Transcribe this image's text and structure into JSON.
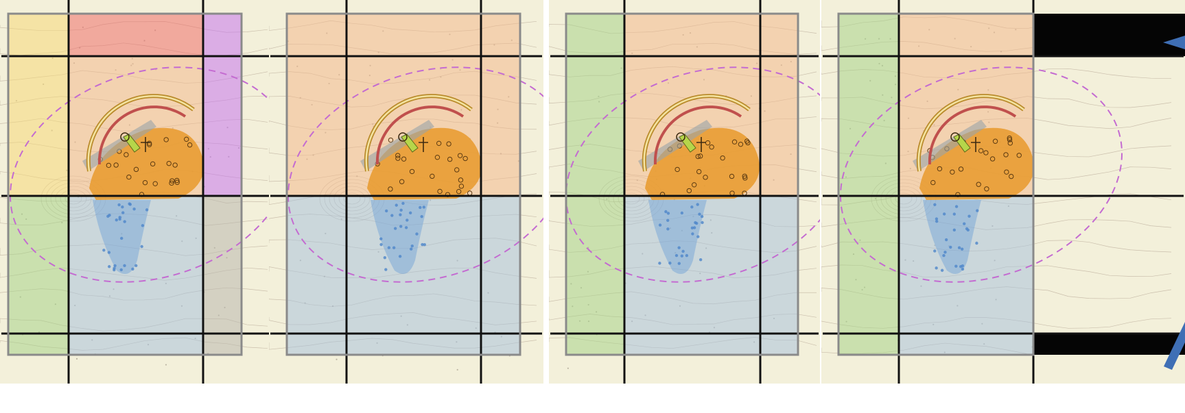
{
  "figure": {
    "panel_count": 4,
    "colors": {
      "map_bg": "#f3f0da",
      "contour": "#a99886",
      "ellipse": "#c46bd1",
      "grid_line": "#111111",
      "frame": "#8a8a8a",
      "arc_outer": "#b98b2c",
      "arc_inner": "#c0504d",
      "yellow": "#f6d87a",
      "red": "#ef6f6c",
      "purple": "#c676ee",
      "orange": "#f3b98e",
      "green": "#a8d48a",
      "blue": "#a9c3dc",
      "gray": "#b9b8ae",
      "black": "#050505",
      "arrow": "#3f6fb5",
      "basin_orange": "#e79a2b",
      "basin_blue": "#6c9fd6"
    },
    "panels": [
      {
        "id": "panel-1",
        "zones": [
          {
            "name": "zone-top-left",
            "color": "yellow"
          },
          {
            "name": "zone-top-center",
            "color": "red"
          },
          {
            "name": "zone-top-right",
            "color": "purple"
          },
          {
            "name": "zone-mid-left",
            "color": "yellow"
          },
          {
            "name": "zone-mid-center",
            "color": "orange"
          },
          {
            "name": "zone-mid-right",
            "color": "purple"
          },
          {
            "name": "zone-bottom-left",
            "color": "green"
          },
          {
            "name": "zone-bottom-center",
            "color": "blue"
          },
          {
            "name": "zone-bottom-right",
            "color": "gray"
          },
          {
            "name": "zone-foot-left",
            "color": "green"
          },
          {
            "name": "zone-foot-center",
            "color": "blue"
          },
          {
            "name": "zone-foot-right",
            "color": "gray"
          }
        ]
      },
      {
        "id": "panel-2",
        "zones": [
          {
            "name": "zone-upper",
            "color": "orange"
          },
          {
            "name": "zone-lower",
            "color": "blue"
          }
        ]
      },
      {
        "id": "panel-3",
        "zones": [
          {
            "name": "zone-left-column",
            "color": "green"
          },
          {
            "name": "zone-upper-right",
            "color": "orange"
          },
          {
            "name": "zone-lower-right",
            "color": "blue"
          }
        ]
      },
      {
        "id": "panel-4",
        "zones": [
          {
            "name": "zone-left-column",
            "color": "green"
          },
          {
            "name": "zone-upper-right",
            "color": "orange"
          },
          {
            "name": "zone-lower-right",
            "color": "blue"
          },
          {
            "name": "zone-corner-top",
            "color": "black"
          },
          {
            "name": "zone-corner-bottom",
            "color": "black"
          }
        ],
        "arrows": [
          "arrow-top-right",
          "arrow-bottom-right"
        ]
      }
    ]
  }
}
